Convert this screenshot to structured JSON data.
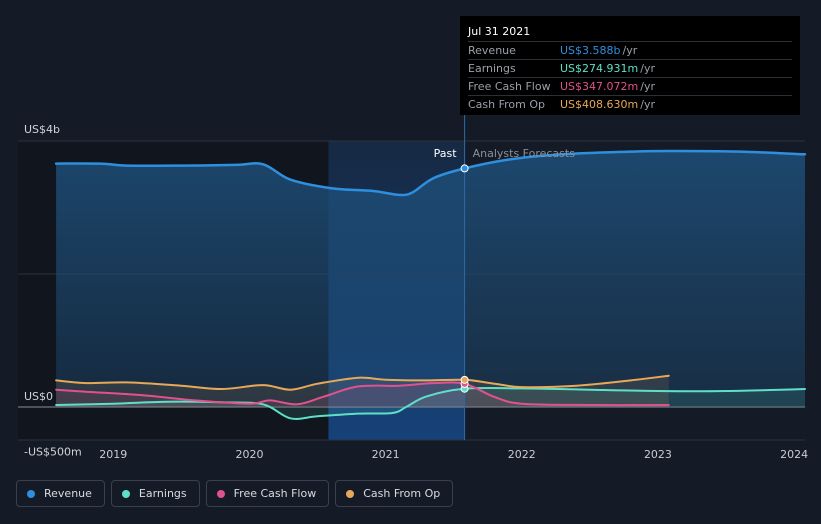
{
  "tooltip": {
    "date": "Jul 31 2021",
    "rows": [
      {
        "label": "Revenue",
        "value": "US$3.588b",
        "unit": "/yr",
        "color": "#2f8fdf"
      },
      {
        "label": "Earnings",
        "value": "US$274.931m",
        "unit": "/yr",
        "color": "#5ee0c8"
      },
      {
        "label": "Free Cash Flow",
        "value": "US$347.072m",
        "unit": "/yr",
        "color": "#e0528e"
      },
      {
        "label": "Cash From Op",
        "value": "US$408.630m",
        "unit": "/yr",
        "color": "#e8a85a"
      }
    ]
  },
  "legend": [
    {
      "label": "Revenue",
      "color": "#2f8fdf"
    },
    {
      "label": "Earnings",
      "color": "#5ee0c8"
    },
    {
      "label": "Free Cash Flow",
      "color": "#e0528e"
    },
    {
      "label": "Cash From Op",
      "color": "#e8a85a"
    }
  ],
  "chart_data": {
    "type": "line",
    "x_unit": "year",
    "ylim": [
      -500,
      4000
    ],
    "y_tick_labels": [
      {
        "value": 4000,
        "label": "US$4b"
      },
      {
        "value": 0,
        "label": "US$0"
      },
      {
        "value": -500,
        "label": "-US$500m"
      }
    ],
    "x_ticks": [
      2019,
      2020,
      2021,
      2022,
      2023,
      2024
    ],
    "xlim": [
      2018.3,
      2024.08
    ],
    "past_label": "Past",
    "forecast_label": "Analysts Forecasts",
    "divider_x": 2021.58,
    "highlight_start_x": 2020.58,
    "grid": true,
    "series": [
      {
        "name": "Revenue",
        "color": "#2f8fdf",
        "x": [
          2018.58,
          2018.9,
          2019.1,
          2019.5,
          2019.9,
          2020.1,
          2020.3,
          2020.6,
          2020.9,
          2021.1,
          2021.2,
          2021.35,
          2021.58,
          2021.9,
          2022.3,
          2022.8,
          2023.1,
          2023.6,
          2024.08
        ],
        "y": [
          3660,
          3660,
          3630,
          3630,
          3640,
          3650,
          3420,
          3290,
          3250,
          3190,
          3230,
          3440,
          3588,
          3720,
          3800,
          3840,
          3850,
          3840,
          3800
        ]
      },
      {
        "name": "Earnings",
        "color": "#5ee0c8",
        "x": [
          2018.58,
          2019.0,
          2019.4,
          2019.8,
          2020.1,
          2020.3,
          2020.5,
          2020.8,
          2021.05,
          2021.15,
          2021.3,
          2021.58,
          2022.0,
          2022.5,
          2023.0,
          2023.5,
          2024.08
        ],
        "y": [
          30,
          50,
          80,
          70,
          40,
          -170,
          -140,
          -100,
          -90,
          0,
          160,
          274.931,
          280,
          260,
          240,
          240,
          270
        ]
      },
      {
        "name": "Free Cash Flow",
        "color": "#e0528e",
        "x": [
          2018.58,
          2018.8,
          2019.2,
          2019.6,
          2020.0,
          2020.15,
          2020.35,
          2020.55,
          2020.8,
          2021.1,
          2021.35,
          2021.58,
          2021.8,
          2022.0,
          2022.5,
          2023.08
        ],
        "y": [
          260,
          230,
          180,
          100,
          50,
          100,
          40,
          160,
          310,
          320,
          360,
          347.072,
          150,
          50,
          30,
          30
        ]
      },
      {
        "name": "Cash From Op",
        "color": "#e8a85a",
        "x": [
          2018.58,
          2018.8,
          2019.1,
          2019.5,
          2019.8,
          2020.1,
          2020.3,
          2020.5,
          2020.8,
          2021.0,
          2021.3,
          2021.58,
          2021.8,
          2022.0,
          2022.4,
          2022.8,
          2023.08
        ],
        "y": [
          400,
          360,
          370,
          320,
          270,
          330,
          260,
          350,
          440,
          410,
          400,
          408.63,
          350,
          300,
          320,
          400,
          470
        ]
      }
    ]
  }
}
